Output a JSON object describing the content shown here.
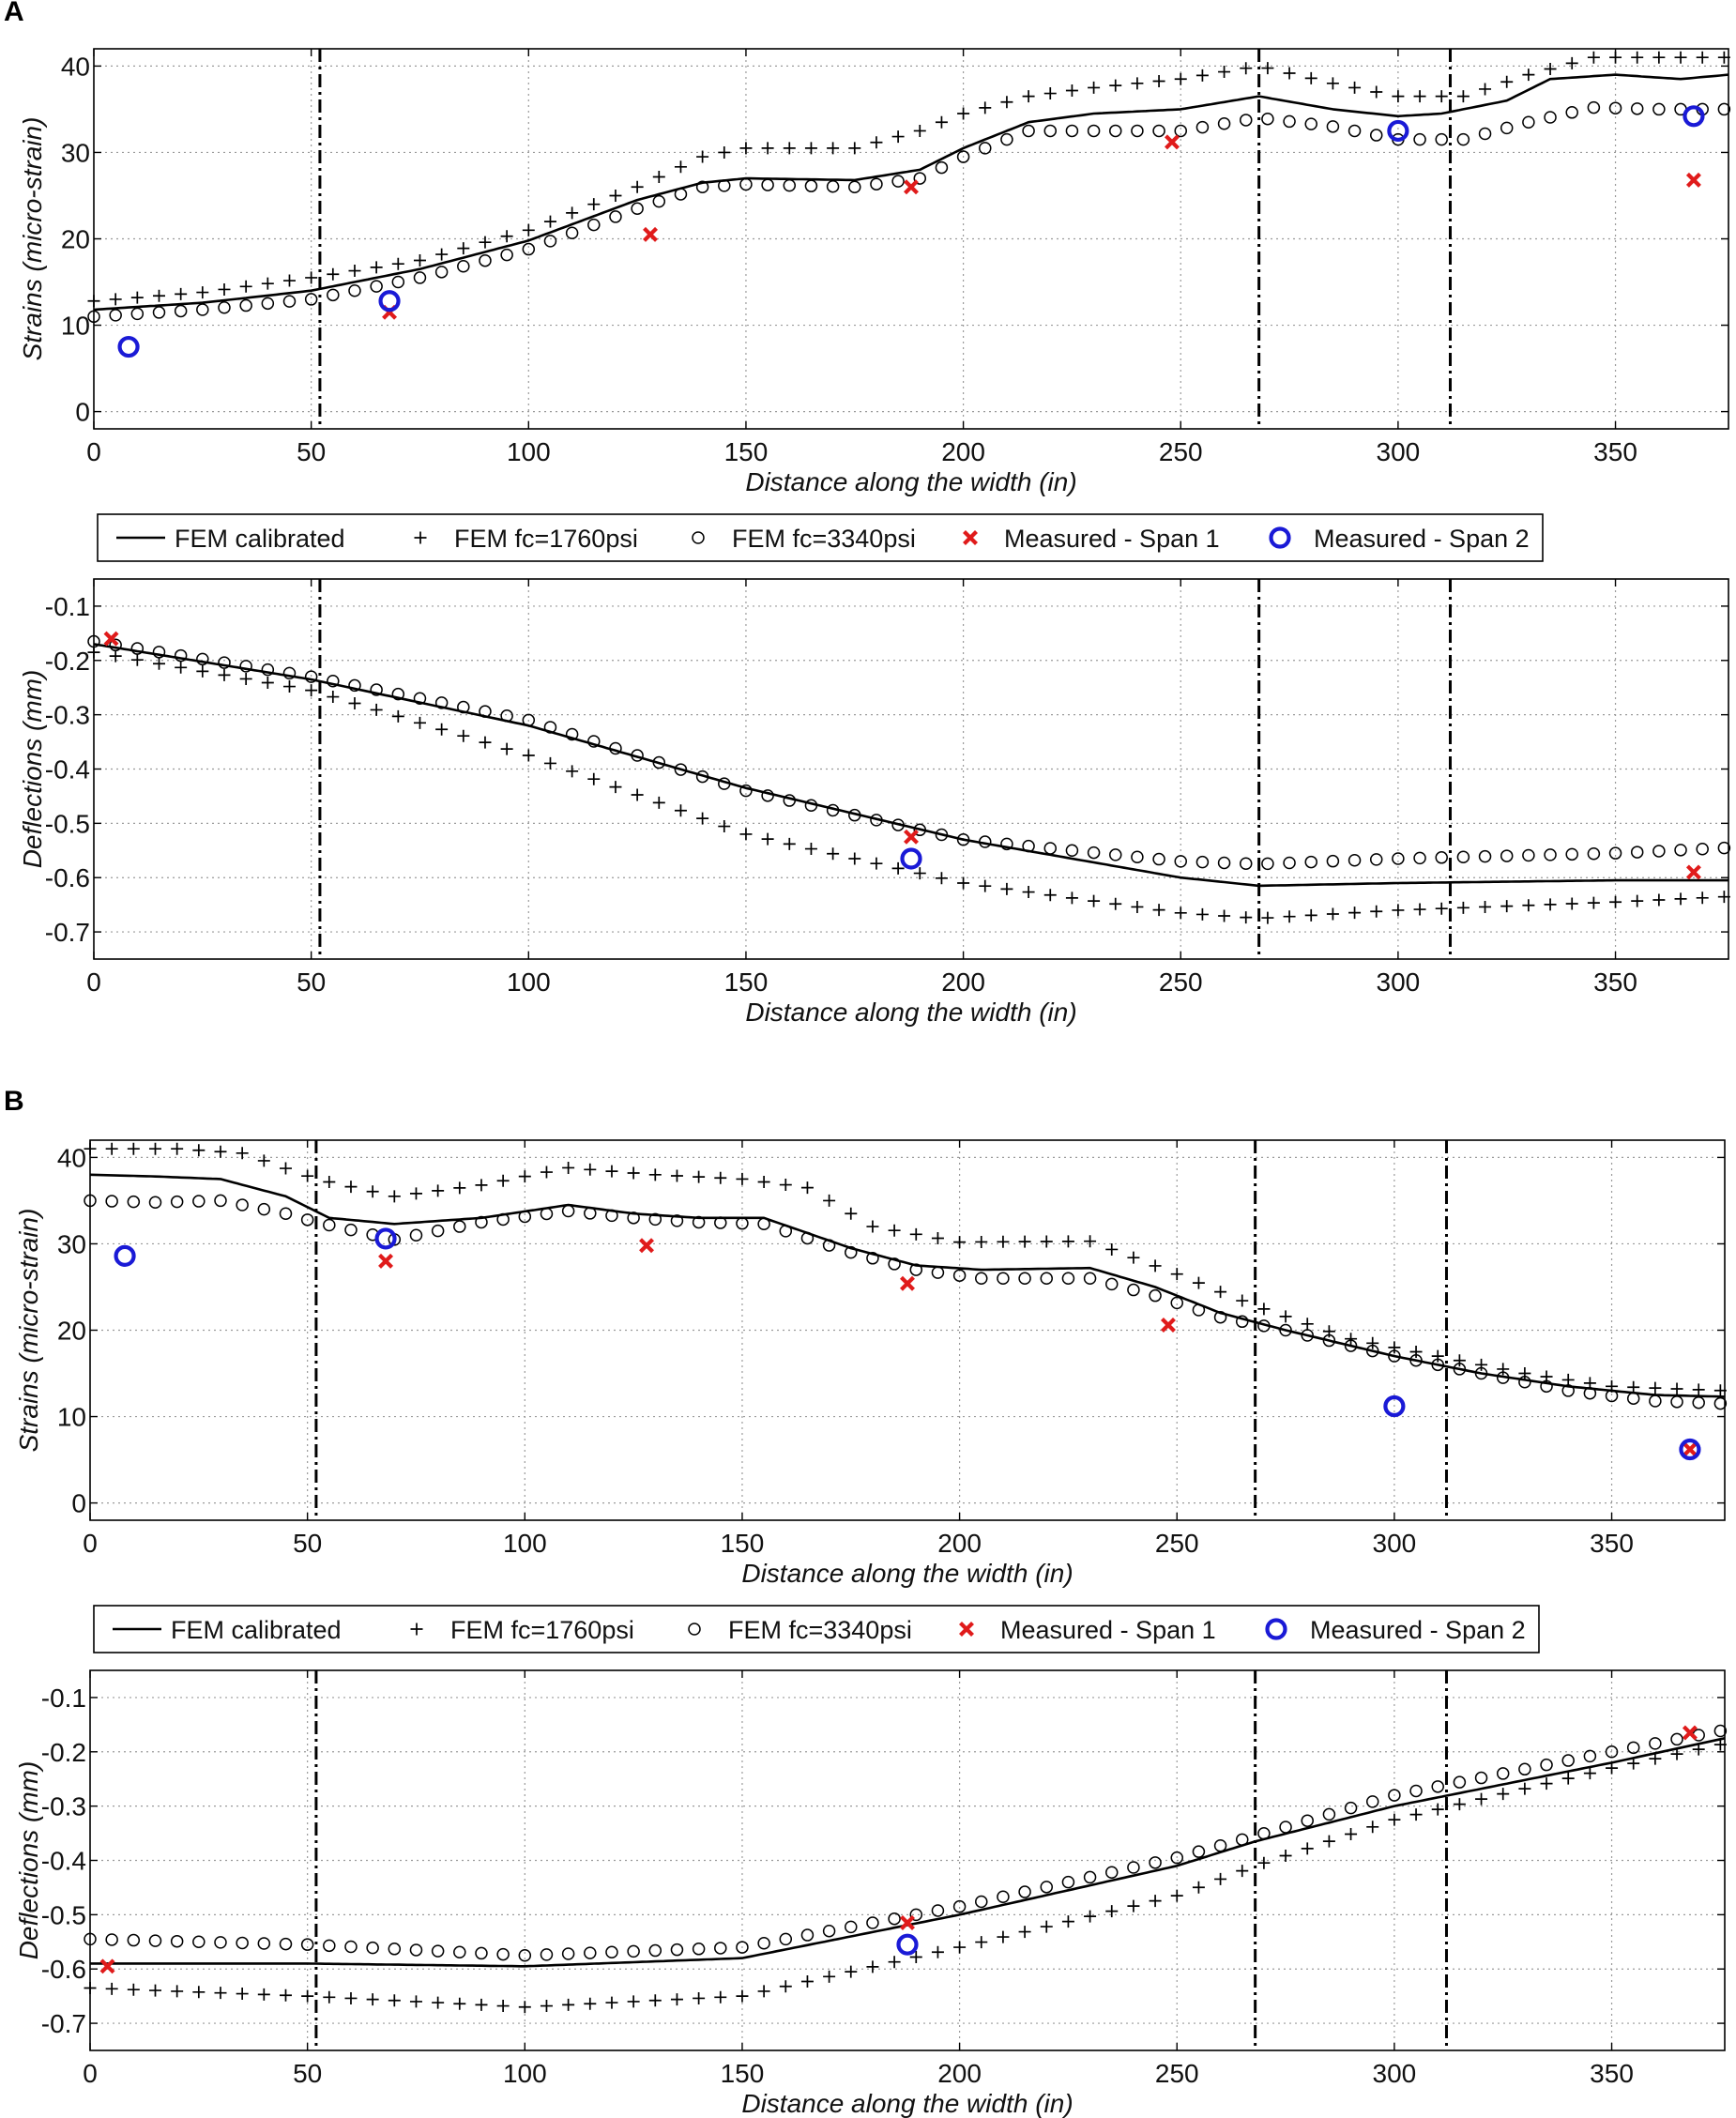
{
  "figure": {
    "panels": [
      {
        "label": "A",
        "legend": [
          "FEM calibrated",
          "FEM fc=1760psi",
          "FEM fc=3340psi",
          "Measured - Span 1",
          "Measured - Span 2"
        ]
      },
      {
        "label": "B",
        "legend": [
          "FEM calibrated",
          "FEM fc=1760psi",
          "FEM fc=3340psi",
          "Measured - Span 1",
          "Measured - Span 2"
        ]
      }
    ]
  },
  "colors": {
    "measured_span1": "#e01b1b",
    "measured_span2": "#1a1ad6",
    "fem": "#000000",
    "grid": "#9a9a9a"
  },
  "chart_data": [
    {
      "id": "A-strains",
      "panel": "A",
      "type": "line",
      "title": "",
      "xlabel": "Distance along the width (in)",
      "ylabel": "Strains (micro-strain)",
      "xlim": [
        0,
        376
      ],
      "ylim": [
        -2,
        42
      ],
      "xticks": [
        0,
        50,
        100,
        150,
        200,
        250,
        300,
        350
      ],
      "xtick_labels": [
        "0",
        "50",
        "100",
        "150",
        "200",
        "250",
        "300",
        "350"
      ],
      "yticks": [
        0,
        10,
        20,
        30,
        40
      ],
      "ytick_labels": [
        "0",
        "10",
        "20",
        "30",
        "40"
      ],
      "grid": true,
      "girder_lines_x": [
        52,
        268,
        312
      ],
      "series": [
        {
          "name": "FEM calibrated",
          "style": "line",
          "x": [
            0,
            25,
            50,
            75,
            100,
            125,
            140,
            150,
            175,
            190,
            200,
            215,
            230,
            250,
            268,
            285,
            300,
            310,
            325,
            335,
            350,
            365,
            376
          ],
          "y": [
            11.8,
            12.6,
            14,
            16.5,
            19.8,
            24.5,
            26.5,
            27,
            26.8,
            28,
            30.5,
            33.5,
            34.5,
            35,
            36.5,
            35,
            34.2,
            34.5,
            36,
            38.5,
            39,
            38.5,
            39
          ]
        },
        {
          "name": "FEM fc=1760psi",
          "style": "plus",
          "x": [
            0,
            25,
            50,
            75,
            100,
            125,
            140,
            150,
            175,
            190,
            200,
            215,
            230,
            250,
            268,
            285,
            300,
            315,
            330,
            345,
            360,
            376
          ],
          "y": [
            12.8,
            13.8,
            15.5,
            17.5,
            21,
            26,
            29.5,
            30.5,
            30.5,
            32.5,
            34.5,
            36.5,
            37.5,
            38.5,
            40,
            38,
            36.5,
            36.5,
            39,
            41,
            41,
            41
          ]
        },
        {
          "name": "FEM fc=3340psi",
          "style": "circle",
          "x": [
            0,
            25,
            50,
            75,
            100,
            125,
            140,
            150,
            175,
            190,
            200,
            215,
            230,
            250,
            268,
            285,
            300,
            315,
            330,
            345,
            360,
            376
          ],
          "y": [
            11,
            11.8,
            13,
            15.5,
            18.8,
            23.5,
            26,
            26.3,
            26,
            27,
            29.5,
            32.5,
            32.5,
            32.5,
            34,
            33,
            31.5,
            31.5,
            33.5,
            35.2,
            35,
            35
          ]
        },
        {
          "name": "Measured - Span 1",
          "style": "x",
          "x": [
            68,
            128,
            188,
            248,
            368
          ],
          "y": [
            11.5,
            20.5,
            26,
            31.2,
            26.8
          ]
        },
        {
          "name": "Measured - Span 2",
          "style": "o",
          "x": [
            8,
            68,
            300,
            368
          ],
          "y": [
            7.5,
            12.8,
            32.5,
            34.2
          ]
        }
      ]
    },
    {
      "id": "A-deflections",
      "panel": "A",
      "type": "line",
      "title": "",
      "xlabel": "Distance along the width (in)",
      "ylabel": "Deflections (mm)",
      "xlim": [
        0,
        376
      ],
      "ylim": [
        -0.75,
        -0.05
      ],
      "xticks": [
        0,
        50,
        100,
        150,
        200,
        250,
        300,
        350
      ],
      "xtick_labels": [
        "0",
        "50",
        "100",
        "150",
        "200",
        "250",
        "300",
        "350"
      ],
      "yticks": [
        -0.1,
        -0.2,
        -0.3,
        -0.4,
        -0.5,
        -0.6,
        -0.7
      ],
      "ytick_labels": [
        "-0.1",
        "-0.2",
        "-0.3",
        "-0.4",
        "-0.5",
        "-0.6",
        "-0.7"
      ],
      "grid": true,
      "girder_lines_x": [
        52,
        268,
        312
      ],
      "series": [
        {
          "name": "FEM calibrated",
          "style": "line",
          "x": [
            0,
            50,
            100,
            150,
            200,
            250,
            268,
            300,
            350,
            376
          ],
          "y": [
            -0.17,
            -0.235,
            -0.32,
            -0.435,
            -0.53,
            -0.6,
            -0.615,
            -0.61,
            -0.605,
            -0.605
          ]
        },
        {
          "name": "FEM fc=1760psi",
          "style": "plus",
          "x": [
            0,
            50,
            100,
            150,
            200,
            250,
            268,
            300,
            350,
            376
          ],
          "y": [
            -0.185,
            -0.255,
            -0.375,
            -0.52,
            -0.61,
            -0.665,
            -0.675,
            -0.66,
            -0.645,
            -0.635
          ]
        },
        {
          "name": "FEM fc=3340psi",
          "style": "circle",
          "x": [
            0,
            50,
            100,
            150,
            200,
            250,
            268,
            300,
            350,
            376
          ],
          "y": [
            -0.165,
            -0.23,
            -0.31,
            -0.44,
            -0.53,
            -0.57,
            -0.575,
            -0.565,
            -0.555,
            -0.545
          ]
        },
        {
          "name": "Measured - Span 1",
          "style": "x",
          "x": [
            4,
            188,
            368
          ],
          "y": [
            -0.16,
            -0.525,
            -0.59
          ]
        },
        {
          "name": "Measured - Span 2",
          "style": "o",
          "x": [
            188
          ],
          "y": [
            -0.565
          ]
        }
      ]
    },
    {
      "id": "B-strains",
      "panel": "B",
      "type": "line",
      "title": "",
      "xlabel": "Distance along the width (in)",
      "ylabel": "Strains (micro-strain)",
      "xlim": [
        0,
        376
      ],
      "ylim": [
        -2,
        42
      ],
      "xticks": [
        0,
        50,
        100,
        150,
        200,
        250,
        300,
        350
      ],
      "xtick_labels": [
        "0",
        "50",
        "100",
        "150",
        "200",
        "250",
        "300",
        "350"
      ],
      "yticks": [
        0,
        10,
        20,
        30,
        40
      ],
      "ytick_labels": [
        "0",
        "10",
        "20",
        "30",
        "40"
      ],
      "grid": true,
      "girder_lines_x": [
        52,
        268,
        312
      ],
      "series": [
        {
          "name": "FEM calibrated",
          "style": "line",
          "x": [
            0,
            15,
            30,
            45,
            55,
            70,
            90,
            110,
            125,
            140,
            155,
            175,
            190,
            205,
            230,
            245,
            260,
            275,
            300,
            320,
            340,
            360,
            376
          ],
          "y": [
            38,
            37.8,
            37.5,
            35.5,
            33,
            32.3,
            33,
            34.5,
            33.5,
            33,
            33,
            29.5,
            27.5,
            27,
            27.2,
            25,
            22,
            20,
            17,
            15,
            13.5,
            12.5,
            12.3
          ]
        },
        {
          "name": "FEM fc=1760psi",
          "style": "plus",
          "x": [
            0,
            20,
            35,
            52,
            70,
            90,
            110,
            130,
            150,
            165,
            180,
            200,
            230,
            250,
            268,
            290,
            310,
            330,
            350,
            376
          ],
          "y": [
            41,
            41,
            40.5,
            37.5,
            35.5,
            36.8,
            38.8,
            38,
            37.5,
            36.5,
            32,
            30.2,
            30.3,
            26.5,
            22.8,
            19,
            17,
            15,
            13.5,
            13
          ]
        },
        {
          "name": "FEM fc=3340psi",
          "style": "circle",
          "x": [
            0,
            15,
            30,
            45,
            52,
            70,
            90,
            110,
            125,
            140,
            155,
            175,
            190,
            205,
            230,
            245,
            260,
            275,
            300,
            320,
            340,
            360,
            376
          ],
          "y": [
            35,
            34.8,
            35,
            33.5,
            32.5,
            30.5,
            32.5,
            33.8,
            33,
            32.5,
            32.3,
            29,
            27,
            26,
            26,
            24,
            21.5,
            20,
            17,
            15,
            13,
            11.8,
            11.5
          ]
        },
        {
          "name": "Measured - Span 1",
          "style": "x",
          "x": [
            68,
            128,
            188,
            248,
            368
          ],
          "y": [
            28,
            29.8,
            25.4,
            20.6,
            6.2
          ]
        },
        {
          "name": "Measured - Span 2",
          "style": "o",
          "x": [
            8,
            68,
            300,
            368
          ],
          "y": [
            28.6,
            30.6,
            11.2,
            6.2
          ]
        }
      ]
    },
    {
      "id": "B-deflections",
      "panel": "B",
      "type": "line",
      "title": "",
      "xlabel": "Distance along the width (in)",
      "ylabel": "Deflections (mm)",
      "xlim": [
        0,
        376
      ],
      "ylim": [
        -0.75,
        -0.05
      ],
      "xticks": [
        0,
        50,
        100,
        150,
        200,
        250,
        300,
        350
      ],
      "xtick_labels": [
        "0",
        "50",
        "100",
        "150",
        "200",
        "250",
        "300",
        "350"
      ],
      "yticks": [
        -0.1,
        -0.2,
        -0.3,
        -0.4,
        -0.5,
        -0.6,
        -0.7
      ],
      "ytick_labels": [
        "-0.1",
        "-0.2",
        "-0.3",
        "-0.4",
        "-0.5",
        "-0.6",
        "-0.7"
      ],
      "grid": true,
      "girder_lines_x": [
        52,
        268,
        312
      ],
      "series": [
        {
          "name": "FEM calibrated",
          "style": "line",
          "x": [
            0,
            50,
            100,
            150,
            200,
            250,
            268,
            300,
            350,
            376
          ],
          "y": [
            -0.59,
            -0.59,
            -0.595,
            -0.58,
            -0.5,
            -0.41,
            -0.365,
            -0.3,
            -0.22,
            -0.175
          ]
        },
        {
          "name": "FEM fc=1760psi",
          "style": "plus",
          "x": [
            0,
            50,
            100,
            150,
            200,
            250,
            268,
            300,
            350,
            376
          ],
          "y": [
            -0.635,
            -0.65,
            -0.67,
            -0.65,
            -0.56,
            -0.465,
            -0.41,
            -0.325,
            -0.23,
            -0.185
          ]
        },
        {
          "name": "FEM fc=3340psi",
          "style": "circle",
          "x": [
            0,
            50,
            100,
            150,
            200,
            250,
            268,
            300,
            350,
            376
          ],
          "y": [
            -0.545,
            -0.555,
            -0.575,
            -0.56,
            -0.485,
            -0.395,
            -0.355,
            -0.28,
            -0.2,
            -0.16
          ]
        },
        {
          "name": "Measured - Span 1",
          "style": "x",
          "x": [
            4,
            188,
            368
          ],
          "y": [
            -0.595,
            -0.515,
            -0.165
          ]
        },
        {
          "name": "Measured - Span 2",
          "style": "o",
          "x": [
            188
          ],
          "y": [
            -0.555
          ]
        }
      ]
    }
  ]
}
